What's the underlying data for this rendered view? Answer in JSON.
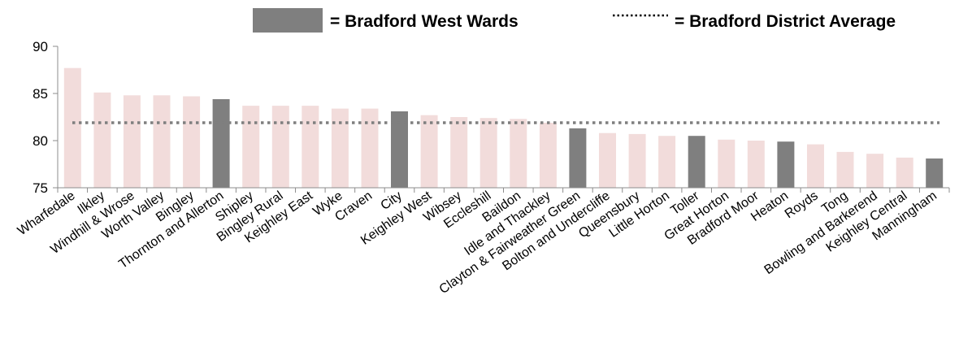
{
  "chart_data": {
    "type": "bar",
    "title": "",
    "xlabel": "",
    "ylabel": "",
    "ylim": [
      75,
      90
    ],
    "yticks": [
      75,
      80,
      85,
      90
    ],
    "grid": false,
    "legend_position": "top",
    "categories": [
      "Wharfedale",
      "Ilkley",
      "Windhill & Wrose",
      "Worth Valley",
      "Bingley",
      "Thornton and Allerton",
      "Shipley",
      "Bingley Rural",
      "Keighley East",
      "Wyke",
      "Craven",
      "City",
      "Keighley West",
      "Wibsey",
      "Eccleshill",
      "Baildon",
      "Idle and Thackley",
      "Clayton & Fairweather Green",
      "Bolton and Undercliffe",
      "Queensbury",
      "Little Horton",
      "Toller",
      "Great Horton",
      "Bradford Moor",
      "Heaton",
      "Royds",
      "Tong",
      "Bowling and Barkerend",
      "Keighley Central",
      "Manningham"
    ],
    "values": [
      87.7,
      85.1,
      84.8,
      84.8,
      84.7,
      84.4,
      83.7,
      83.7,
      83.7,
      83.4,
      83.4,
      83.1,
      82.7,
      82.5,
      82.4,
      82.3,
      81.9,
      81.3,
      80.8,
      80.7,
      80.5,
      80.5,
      80.1,
      80.0,
      79.9,
      79.6,
      78.8,
      78.6,
      78.2,
      78.1
    ],
    "highlight": [
      false,
      false,
      false,
      false,
      false,
      true,
      false,
      false,
      false,
      false,
      false,
      true,
      false,
      false,
      false,
      false,
      false,
      true,
      false,
      false,
      false,
      true,
      false,
      false,
      true,
      false,
      false,
      false,
      false,
      true
    ],
    "reference_line": {
      "value": 81.9,
      "label": "= Bradford District Average"
    },
    "legend": [
      {
        "label": "= Bradford West  Wards",
        "swatch": "bar"
      },
      {
        "label": "= Bradford District Average",
        "swatch": "dotted-line"
      }
    ],
    "colors": {
      "highlight": "#7f7f7f",
      "other": "#f2dcdb",
      "reference": "#7f7f7f",
      "axis": "#8c8c8c"
    }
  }
}
